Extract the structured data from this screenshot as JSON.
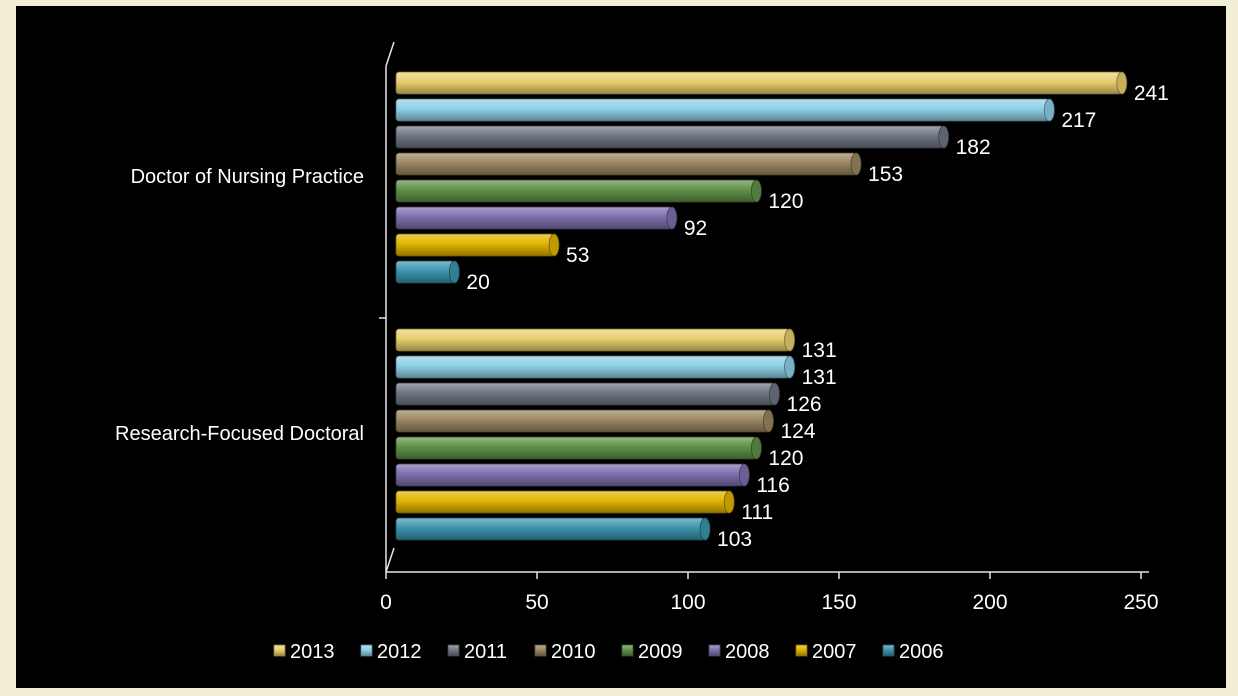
{
  "chart_data": {
    "type": "bar",
    "orientation": "horizontal",
    "categories": [
      "Doctor of Nursing Practice",
      "Research-Focused Doctoral"
    ],
    "series": [
      {
        "name": "2013",
        "color": "#e8cf6c",
        "values": [
          241,
          131
        ]
      },
      {
        "name": "2012",
        "color": "#8fd0e6",
        "values": [
          217,
          131
        ]
      },
      {
        "name": "2011",
        "color": "#6f7682",
        "values": [
          182,
          126
        ]
      },
      {
        "name": "2010",
        "color": "#9a8660",
        "values": [
          153,
          124
        ]
      },
      {
        "name": "2009",
        "color": "#5f9146",
        "values": [
          120,
          120
        ]
      },
      {
        "name": "2008",
        "color": "#7e6fae",
        "values": [
          92,
          116
        ]
      },
      {
        "name": "2007",
        "color": "#e0b400",
        "values": [
          53,
          111
        ]
      },
      {
        "name": "2006",
        "color": "#3b94ad",
        "values": [
          20,
          103
        ]
      }
    ],
    "xlim": [
      0,
      250
    ],
    "xticks": [
      0,
      50,
      100,
      150,
      200,
      250
    ],
    "grid": false,
    "legend_position": "bottom",
    "data_labels": true,
    "background": "#000000",
    "text_color": "#ffffff"
  }
}
